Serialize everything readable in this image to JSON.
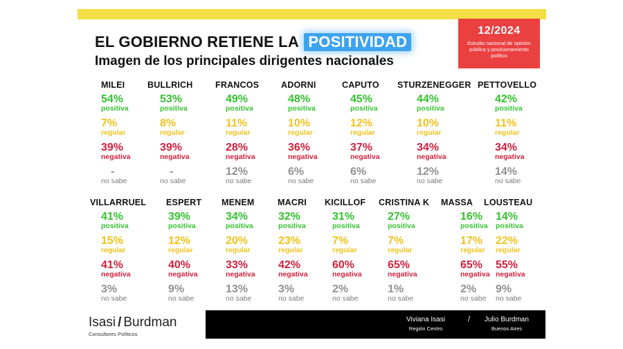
{
  "header": {
    "title_main": "EL GOBIERNO RETIENE LA",
    "title_highlight": "POSITIVIDAD",
    "subtitle": "Imagen de los principales dirigentes nacionales",
    "date": "12/2024",
    "date_desc": "Estudio nacional de opinión pública y posicionamiento político"
  },
  "labels": {
    "positive": "positiva",
    "regular": "regular",
    "negative": "negativa",
    "unknown": "no sabe"
  },
  "colors": {
    "positive": "#35c12f",
    "regular": "#f0c21c",
    "negative": "#d11f3c",
    "unknown": "#909090",
    "highlight": "#3ea3ee",
    "date_box": "#ea4040",
    "top_bar": "#f3df45"
  },
  "chart_data": {
    "type": "table",
    "columns": [
      "positiva",
      "regular",
      "negativa",
      "no sabe"
    ],
    "rows": [
      {
        "name": "MILEI",
        "positiva": "54%",
        "regular": "7%",
        "negativa": "39%",
        "no_sabe": "-"
      },
      {
        "name": "BULLRICH",
        "positiva": "53%",
        "regular": "8%",
        "negativa": "39%",
        "no_sabe": "-"
      },
      {
        "name": "FRANCOS",
        "positiva": "49%",
        "regular": "11%",
        "negativa": "28%",
        "no_sabe": "12%"
      },
      {
        "name": "ADORNI",
        "positiva": "48%",
        "regular": "10%",
        "negativa": "36%",
        "no_sabe": "6%"
      },
      {
        "name": "CAPUTO",
        "positiva": "45%",
        "regular": "12%",
        "negativa": "37%",
        "no_sabe": "6%"
      },
      {
        "name": "STURZENEGGER",
        "positiva": "44%",
        "regular": "10%",
        "negativa": "34%",
        "no_sabe": "12%"
      },
      {
        "name": "PETTOVELLO",
        "positiva": "42%",
        "regular": "11%",
        "negativa": "34%",
        "no_sabe": "14%"
      },
      {
        "name": "VILLARRUEL",
        "positiva": "41%",
        "regular": "15%",
        "negativa": "41%",
        "no_sabe": "3%"
      },
      {
        "name": "ESPERT",
        "positiva": "39%",
        "regular": "12%",
        "negativa": "40%",
        "no_sabe": "9%"
      },
      {
        "name": "MENEM",
        "positiva": "34%",
        "regular": "20%",
        "negativa": "33%",
        "no_sabe": "13%"
      },
      {
        "name": "MACRI",
        "positiva": "32%",
        "regular": "23%",
        "negativa": "42%",
        "no_sabe": "3%"
      },
      {
        "name": "KICILLOF",
        "positiva": "31%",
        "regular": "7%",
        "negativa": "60%",
        "no_sabe": "2%"
      },
      {
        "name": "CRISTINA K",
        "positiva": "27%",
        "regular": "7%",
        "negativa": "65%",
        "no_sabe": "1%"
      },
      {
        "name": "MASSA",
        "positiva": "16%",
        "regular": "17%",
        "negativa": "65%",
        "no_sabe": "2%"
      },
      {
        "name": "LOUSTEAU",
        "positiva": "14%",
        "regular": "22%",
        "negativa": "55%",
        "no_sabe": "9%"
      }
    ]
  },
  "footer": {
    "brand_left": "Isasi",
    "brand_slash": "/",
    "brand_right": "Burdman",
    "tagline": "Consultores Políticos",
    "person1_name": "Viviana Isasi",
    "person1_region": "Región Centro",
    "separator": "/",
    "person2_name": "Julio Burdman",
    "person2_region": "Buenos Aires"
  }
}
